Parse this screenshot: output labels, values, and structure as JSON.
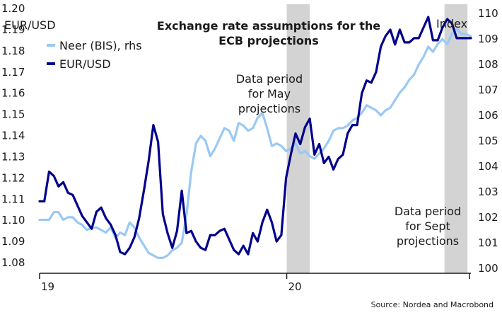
{
  "chart_data": {
    "type": "line",
    "title": [
      "Exchange rate assumptions for the",
      "ECB projections"
    ],
    "source": "Source: Nordea and Macrobond",
    "left_axis": {
      "label": "EUR/USD",
      "ylim": [
        1.075,
        1.2
      ],
      "ticks": [
        "1.08",
        "1.09",
        "1.10",
        "1.11",
        "1.12",
        "1.13",
        "1.14",
        "1.15",
        "1.16",
        "1.17",
        "1.18",
        "1.19",
        "1.20"
      ]
    },
    "right_axis": {
      "label": "Index",
      "ylim": [
        99.8,
        110.2
      ],
      "ticks": [
        "100",
        "101",
        "102",
        "103",
        "104",
        "105",
        "106",
        "107",
        "108",
        "109",
        "110"
      ]
    },
    "x_axis": {
      "range": [
        "2019-01-01",
        "2020-09-29"
      ],
      "ticks": [
        {
          "label": "19",
          "date": "2019-01-01"
        },
        {
          "label": "20",
          "date": "2020-01-01"
        }
      ]
    },
    "shaded_periods": [
      {
        "start": "2020-01-01",
        "end": "2020-02-04",
        "label": [
          "Data period",
          "for May",
          "projections"
        ]
      },
      {
        "start": "2020-08-21",
        "end": "2020-09-24",
        "label": [
          "Data period",
          "for Sept",
          "projections"
        ]
      }
    ],
    "legend": {
      "position": "top-left",
      "entries": [
        {
          "label": "Neer (BIS), rhs",
          "color": "#9ac9f3"
        },
        {
          "label": "EUR/USD",
          "color": "#00008c"
        }
      ]
    },
    "series": [
      {
        "name": "Neer (BIS), rhs",
        "axis": "right",
        "color": "#9ac9f3",
        "dates": [
          "2019-01-01",
          "2019-01-08",
          "2019-01-15",
          "2019-01-22",
          "2019-01-29",
          "2019-02-05",
          "2019-02-12",
          "2019-02-19",
          "2019-02-26",
          "2019-03-05",
          "2019-03-12",
          "2019-03-19",
          "2019-03-26",
          "2019-04-02",
          "2019-04-09",
          "2019-04-16",
          "2019-04-23",
          "2019-04-30",
          "2019-05-07",
          "2019-05-14",
          "2019-05-21",
          "2019-05-28",
          "2019-06-04",
          "2019-06-11",
          "2019-06-18",
          "2019-06-25",
          "2019-07-02",
          "2019-07-09",
          "2019-07-16",
          "2019-07-23",
          "2019-07-30",
          "2019-08-06",
          "2019-08-13",
          "2019-08-20",
          "2019-08-27",
          "2019-09-03",
          "2019-09-10",
          "2019-09-17",
          "2019-09-24",
          "2019-10-01",
          "2019-10-08",
          "2019-10-15",
          "2019-10-22",
          "2019-10-29",
          "2019-11-05",
          "2019-11-12",
          "2019-11-19",
          "2019-11-26",
          "2019-12-03",
          "2019-12-10",
          "2019-12-17",
          "2019-12-24",
          "2019-12-31",
          "2020-01-07",
          "2020-01-14",
          "2020-01-21",
          "2020-01-28",
          "2020-02-04",
          "2020-02-11",
          "2020-02-18",
          "2020-02-25",
          "2020-03-03",
          "2020-03-10",
          "2020-03-17",
          "2020-03-24",
          "2020-03-31",
          "2020-04-07",
          "2020-04-14",
          "2020-04-21",
          "2020-04-28",
          "2020-05-05",
          "2020-05-12",
          "2020-05-19",
          "2020-05-26",
          "2020-06-02",
          "2020-06-09",
          "2020-06-16",
          "2020-06-23",
          "2020-06-30",
          "2020-07-07",
          "2020-07-14",
          "2020-07-21",
          "2020-07-28",
          "2020-08-04",
          "2020-08-11",
          "2020-08-18",
          "2020-08-25",
          "2020-09-01",
          "2020-09-08",
          "2020-09-15",
          "2020-09-22",
          "2020-09-29"
        ],
        "values": [
          101.9,
          101.9,
          101.9,
          102.2,
          102.2,
          101.9,
          102.0,
          102.0,
          101.8,
          101.7,
          101.5,
          101.6,
          101.6,
          101.5,
          101.4,
          101.6,
          101.2,
          101.4,
          101.3,
          101.8,
          101.6,
          101.2,
          100.9,
          100.6,
          100.5,
          100.4,
          100.4,
          100.5,
          100.7,
          100.8,
          101.0,
          102.1,
          103.8,
          104.9,
          105.2,
          105.0,
          104.4,
          104.7,
          105.1,
          105.5,
          105.4,
          105.0,
          105.7,
          105.6,
          105.4,
          105.5,
          105.9,
          106.1,
          105.5,
          104.8,
          104.9,
          104.8,
          104.6,
          104.7,
          104.9,
          104.5,
          104.6,
          104.4,
          104.3,
          104.5,
          104.7,
          105.0,
          105.4,
          105.5,
          105.5,
          105.6,
          105.8,
          105.9,
          106.1,
          106.4,
          106.3,
          106.2,
          106.0,
          106.2,
          106.3,
          106.6,
          106.9,
          107.1,
          107.4,
          107.6,
          108.0,
          108.3,
          108.7,
          108.5,
          108.8,
          109.0,
          108.8,
          109.2,
          109.4,
          109.2,
          109.2,
          109.1
        ]
      },
      {
        "name": "EUR/USD",
        "axis": "left",
        "color": "#00008c",
        "dates": [
          "2019-01-01",
          "2019-01-08",
          "2019-01-15",
          "2019-01-22",
          "2019-01-29",
          "2019-02-05",
          "2019-02-12",
          "2019-02-19",
          "2019-02-26",
          "2019-03-05",
          "2019-03-12",
          "2019-03-19",
          "2019-03-26",
          "2019-04-02",
          "2019-04-09",
          "2019-04-16",
          "2019-04-23",
          "2019-04-30",
          "2019-05-07",
          "2019-05-14",
          "2019-05-21",
          "2019-05-28",
          "2019-06-04",
          "2019-06-11",
          "2019-06-18",
          "2019-06-25",
          "2019-07-02",
          "2019-07-09",
          "2019-07-16",
          "2019-07-23",
          "2019-07-30",
          "2019-08-06",
          "2019-08-13",
          "2019-08-20",
          "2019-08-27",
          "2019-09-03",
          "2019-09-10",
          "2019-09-17",
          "2019-09-24",
          "2019-10-01",
          "2019-10-08",
          "2019-10-15",
          "2019-10-22",
          "2019-10-29",
          "2019-11-05",
          "2019-11-12",
          "2019-11-19",
          "2019-11-26",
          "2019-12-03",
          "2019-12-10",
          "2019-12-17",
          "2019-12-24",
          "2019-12-31",
          "2020-01-07",
          "2020-01-14",
          "2020-01-21",
          "2020-01-28",
          "2020-02-04",
          "2020-02-11",
          "2020-02-18",
          "2020-02-25",
          "2020-03-03",
          "2020-03-10",
          "2020-03-17",
          "2020-03-24",
          "2020-03-31",
          "2020-04-07",
          "2020-04-14",
          "2020-04-21",
          "2020-04-28",
          "2020-05-05",
          "2020-05-12",
          "2020-05-19",
          "2020-05-26",
          "2020-06-02",
          "2020-06-09",
          "2020-06-16",
          "2020-06-23",
          "2020-06-30",
          "2020-07-07",
          "2020-07-14",
          "2020-07-21",
          "2020-07-28",
          "2020-08-04",
          "2020-08-11",
          "2020-08-18",
          "2020-08-25",
          "2020-09-01",
          "2020-09-08",
          "2020-09-15",
          "2020-09-22",
          "2020-09-29"
        ],
        "values": [
          1.109,
          1.109,
          1.123,
          1.121,
          1.116,
          1.118,
          1.113,
          1.112,
          1.107,
          1.102,
          1.099,
          1.096,
          1.104,
          1.106,
          1.101,
          1.098,
          1.093,
          1.085,
          1.084,
          1.087,
          1.092,
          1.101,
          1.114,
          1.128,
          1.145,
          1.137,
          1.103,
          1.094,
          1.087,
          1.095,
          1.114,
          1.094,
          1.095,
          1.09,
          1.087,
          1.086,
          1.093,
          1.093,
          1.095,
          1.096,
          1.091,
          1.086,
          1.084,
          1.088,
          1.084,
          1.094,
          1.09,
          1.099,
          1.105,
          1.099,
          1.09,
          1.093,
          1.12,
          1.131,
          1.141,
          1.136,
          1.144,
          1.148,
          1.131,
          1.136,
          1.127,
          1.13,
          1.124,
          1.129,
          1.131,
          1.141,
          1.145,
          1.145,
          1.16,
          1.166,
          1.165,
          1.17,
          1.182,
          1.187,
          1.19,
          1.183,
          1.19,
          1.184,
          1.184,
          1.186,
          1.186,
          1.191,
          1.196,
          1.185,
          1.185,
          1.191,
          1.195,
          1.193,
          1.186,
          1.186,
          1.186,
          1.186
        ]
      }
    ]
  }
}
